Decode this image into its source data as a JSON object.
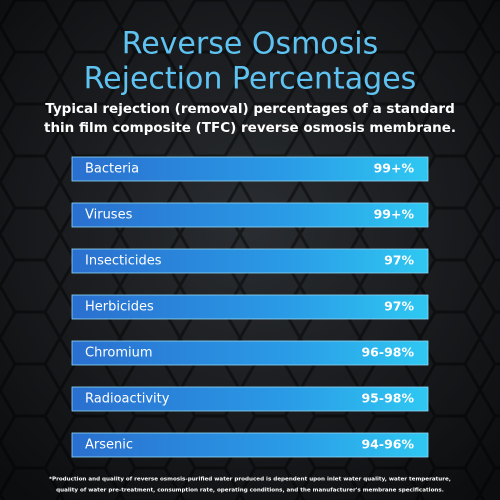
{
  "header": {
    "title_lines": [
      "Reverse Osmosis",
      "Rejection Percentages"
    ],
    "subtitle_lines": [
      "Typical rejection (removal) percentages of a standard",
      "thin film composite (TFC) reverse osmosis membrane."
    ]
  },
  "rows": [
    {
      "label": "Bacteria",
      "value": "99+%"
    },
    {
      "label": "Viruses",
      "value": "99+%"
    },
    {
      "label": "Insecticides",
      "value": "97%"
    },
    {
      "label": "Herbicides",
      "value": "97%"
    },
    {
      "label": "Chromium",
      "value": "96-98%"
    },
    {
      "label": "Radioactivity",
      "value": "95-98%"
    },
    {
      "label": "Arsenic",
      "value": "94-96%"
    }
  ],
  "footnote_lines": [
    "*Production and quality of reverse osmosis-purified water produced is dependent upon inlet water quality, water temperature,",
    "quality of water pre-treatment, consumption rate, operating conditions, and the manufacturer's membrane specifications."
  ]
}
